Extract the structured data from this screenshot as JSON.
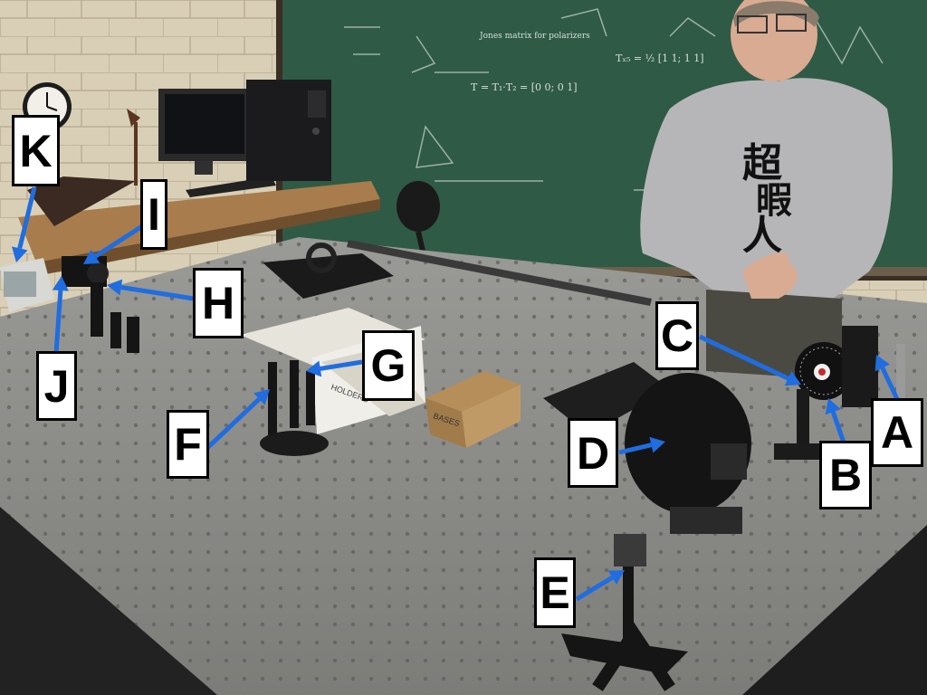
{
  "colors": {
    "wall": "#d9cfb6",
    "chalkboard": "#2f5a46",
    "table": "#8d8d8a",
    "arrow": "#1f6de0",
    "label_bg": "#ffffff",
    "label_text": "#000000"
  },
  "chalkboard_text": {
    "line1": "Jones matrix for polarizers",
    "line2": "T = T₁·T₂ = [0 0; 0 1]",
    "line3": "Tₓ₅ = ½ [1 1; 1 1]"
  },
  "box_labels": {
    "holders": "HOLDERS",
    "bases": "BASES"
  },
  "shirt_text": {
    "char1": "超",
    "char2": "暇",
    "char3": "人"
  },
  "labels": [
    {
      "id": "A",
      "text": "A"
    },
    {
      "id": "B",
      "text": "B"
    },
    {
      "id": "C",
      "text": "C"
    },
    {
      "id": "D",
      "text": "D"
    },
    {
      "id": "E",
      "text": "E"
    },
    {
      "id": "F",
      "text": "F"
    },
    {
      "id": "G",
      "text": "G"
    },
    {
      "id": "H",
      "text": "H"
    },
    {
      "id": "I",
      "text": "I"
    },
    {
      "id": "J",
      "text": "J"
    },
    {
      "id": "K",
      "text": "K"
    }
  ]
}
